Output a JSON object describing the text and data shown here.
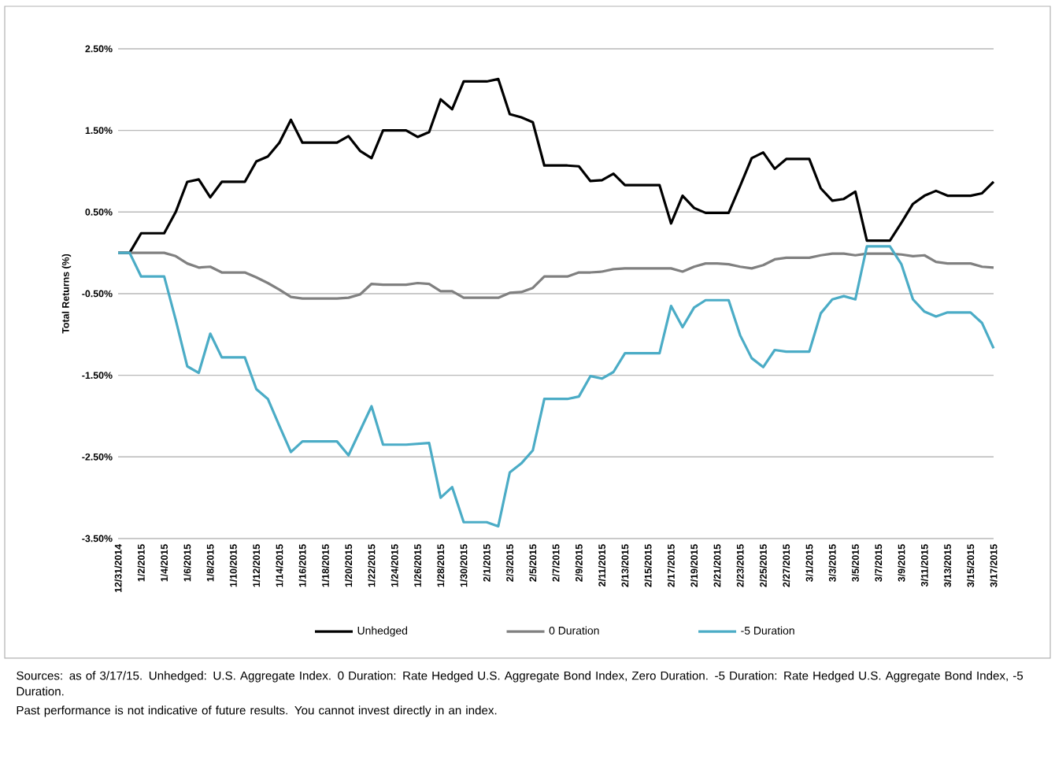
{
  "chart_data": {
    "type": "line",
    "ylabel": "Total Returns (%)",
    "categories": [
      "12/31/2014",
      null,
      "1/2/2015",
      null,
      "1/4/2015",
      null,
      "1/6/2015",
      null,
      "1/8/2015",
      null,
      "1/10/2015",
      null,
      "1/12/2015",
      null,
      "1/14/2015",
      null,
      "1/16/2015",
      null,
      "1/18/2015",
      null,
      "1/20/2015",
      null,
      "1/22/2015",
      null,
      "1/24/2015",
      null,
      "1/26/2015",
      null,
      "1/28/2015",
      null,
      "1/30/2015",
      null,
      "2/1/2015",
      null,
      "2/3/2015",
      null,
      "2/5/2015",
      null,
      "2/7/2015",
      null,
      "2/9/2015",
      null,
      "2/11/2015",
      null,
      "2/13/2015",
      null,
      "2/15/2015",
      null,
      "2/17/2015",
      null,
      "2/19/2015",
      null,
      "2/21/2015",
      null,
      "2/23/2015",
      null,
      "2/25/2015",
      null,
      "2/27/2015",
      null,
      "3/1/2015",
      null,
      "3/3/2015",
      null,
      "3/5/2015",
      null,
      "3/7/2015",
      null,
      "3/9/2015",
      null,
      "3/11/2015",
      null,
      "3/13/2015",
      null,
      "3/15/2015",
      null,
      "3/17/2015"
    ],
    "series": [
      {
        "name": "Unhedged",
        "color": "#000000",
        "values": [
          0,
          0,
          0.24,
          0.24,
          0.24,
          0.5,
          0.87,
          0.9,
          0.68,
          0.87,
          0.87,
          0.87,
          1.12,
          1.18,
          1.35,
          1.63,
          1.35,
          1.35,
          1.35,
          1.35,
          1.43,
          1.25,
          1.16,
          1.5,
          1.5,
          1.5,
          1.42,
          1.48,
          1.88,
          1.76,
          2.1,
          2.1,
          2.1,
          2.13,
          1.7,
          1.66,
          1.6,
          1.07,
          1.07,
          1.07,
          1.06,
          0.88,
          0.89,
          0.97,
          0.83,
          0.83,
          0.83,
          0.83,
          0.36,
          0.7,
          0.55,
          0.49,
          0.49,
          0.49,
          0.82,
          1.16,
          1.23,
          1.03,
          1.15,
          1.15,
          1.15,
          0.79,
          0.64,
          0.66,
          0.75,
          0.15,
          0.15,
          0.15,
          0.37,
          0.6,
          0.7,
          0.76,
          0.7,
          0.7,
          0.7,
          0.73,
          0.87
        ]
      },
      {
        "name": "0 Duration",
        "color": "#808080",
        "values": [
          0,
          0,
          0,
          0,
          0,
          -0.04,
          -0.13,
          -0.18,
          -0.17,
          -0.24,
          -0.24,
          -0.24,
          -0.3,
          -0.37,
          -0.45,
          -0.54,
          -0.56,
          -0.56,
          -0.56,
          -0.56,
          -0.55,
          -0.51,
          -0.38,
          -0.39,
          -0.39,
          -0.39,
          -0.37,
          -0.38,
          -0.47,
          -0.47,
          -0.55,
          -0.55,
          -0.55,
          -0.55,
          -0.49,
          -0.48,
          -0.43,
          -0.29,
          -0.29,
          -0.29,
          -0.24,
          -0.24,
          -0.23,
          -0.2,
          -0.19,
          -0.19,
          -0.19,
          -0.19,
          -0.19,
          -0.23,
          -0.17,
          -0.13,
          -0.13,
          -0.14,
          -0.17,
          -0.19,
          -0.15,
          -0.08,
          -0.06,
          -0.06,
          -0.06,
          -0.03,
          -0.01,
          -0.01,
          -0.03,
          -0.01,
          -0.01,
          -0.01,
          -0.02,
          -0.04,
          -0.03,
          -0.11,
          -0.13,
          -0.13,
          -0.13,
          -0.17,
          -0.18
        ]
      },
      {
        "name": "-5 Duration",
        "color": "#4bacc6",
        "values": [
          0,
          0,
          -0.29,
          -0.29,
          -0.29,
          -0.82,
          -1.39,
          -1.47,
          -0.99,
          -1.28,
          -1.28,
          -1.28,
          -1.67,
          -1.79,
          -2.12,
          -2.44,
          -2.31,
          -2.31,
          -2.31,
          -2.31,
          -2.48,
          -2.18,
          -1.88,
          -2.35,
          -2.35,
          -2.35,
          -2.34,
          -2.33,
          -3.0,
          -2.87,
          -3.3,
          -3.3,
          -3.3,
          -3.35,
          -2.69,
          -2.58,
          -2.42,
          -1.79,
          -1.79,
          -1.79,
          -1.76,
          -1.51,
          -1.54,
          -1.46,
          -1.23,
          -1.23,
          -1.23,
          -1.23,
          -0.65,
          -0.91,
          -0.67,
          -0.58,
          -0.58,
          -0.58,
          -1.01,
          -1.29,
          -1.4,
          -1.19,
          -1.21,
          -1.21,
          -1.21,
          -0.74,
          -0.57,
          -0.53,
          -0.57,
          0.08,
          0.08,
          0.08,
          -0.14,
          -0.57,
          -0.72,
          -0.78,
          -0.73,
          -0.73,
          -0.73,
          -0.86,
          -1.17
        ]
      }
    ],
    "ylim": [
      -3.5,
      2.5
    ],
    "yticks": [
      {
        "value": 2.5,
        "label": "2.50%"
      },
      {
        "value": 1.5,
        "label": "1.50%"
      },
      {
        "value": 0.5,
        "label": "0.50%"
      },
      {
        "value": -0.5,
        "label": "-0.50%"
      },
      {
        "value": -1.5,
        "label": "-1.50%"
      },
      {
        "value": -2.5,
        "label": "-2.50%"
      },
      {
        "value": -3.5,
        "label": "-3.50%"
      }
    ],
    "grid": "y",
    "legend": "bottom",
    "line_style": "solid",
    "annotations": [
      "Sources: as of 3/17/15. Unhedged: U.S. Aggregate Index. 0 Duration: Rate Hedged U.S. Aggregate Bond Index, Zero Duration. -5 Duration: Rate Hedged U.S. Aggregate Bond Index, -5 Duration.",
      "Past performance is not indicative of future results. You cannot invest directly in an index."
    ]
  }
}
